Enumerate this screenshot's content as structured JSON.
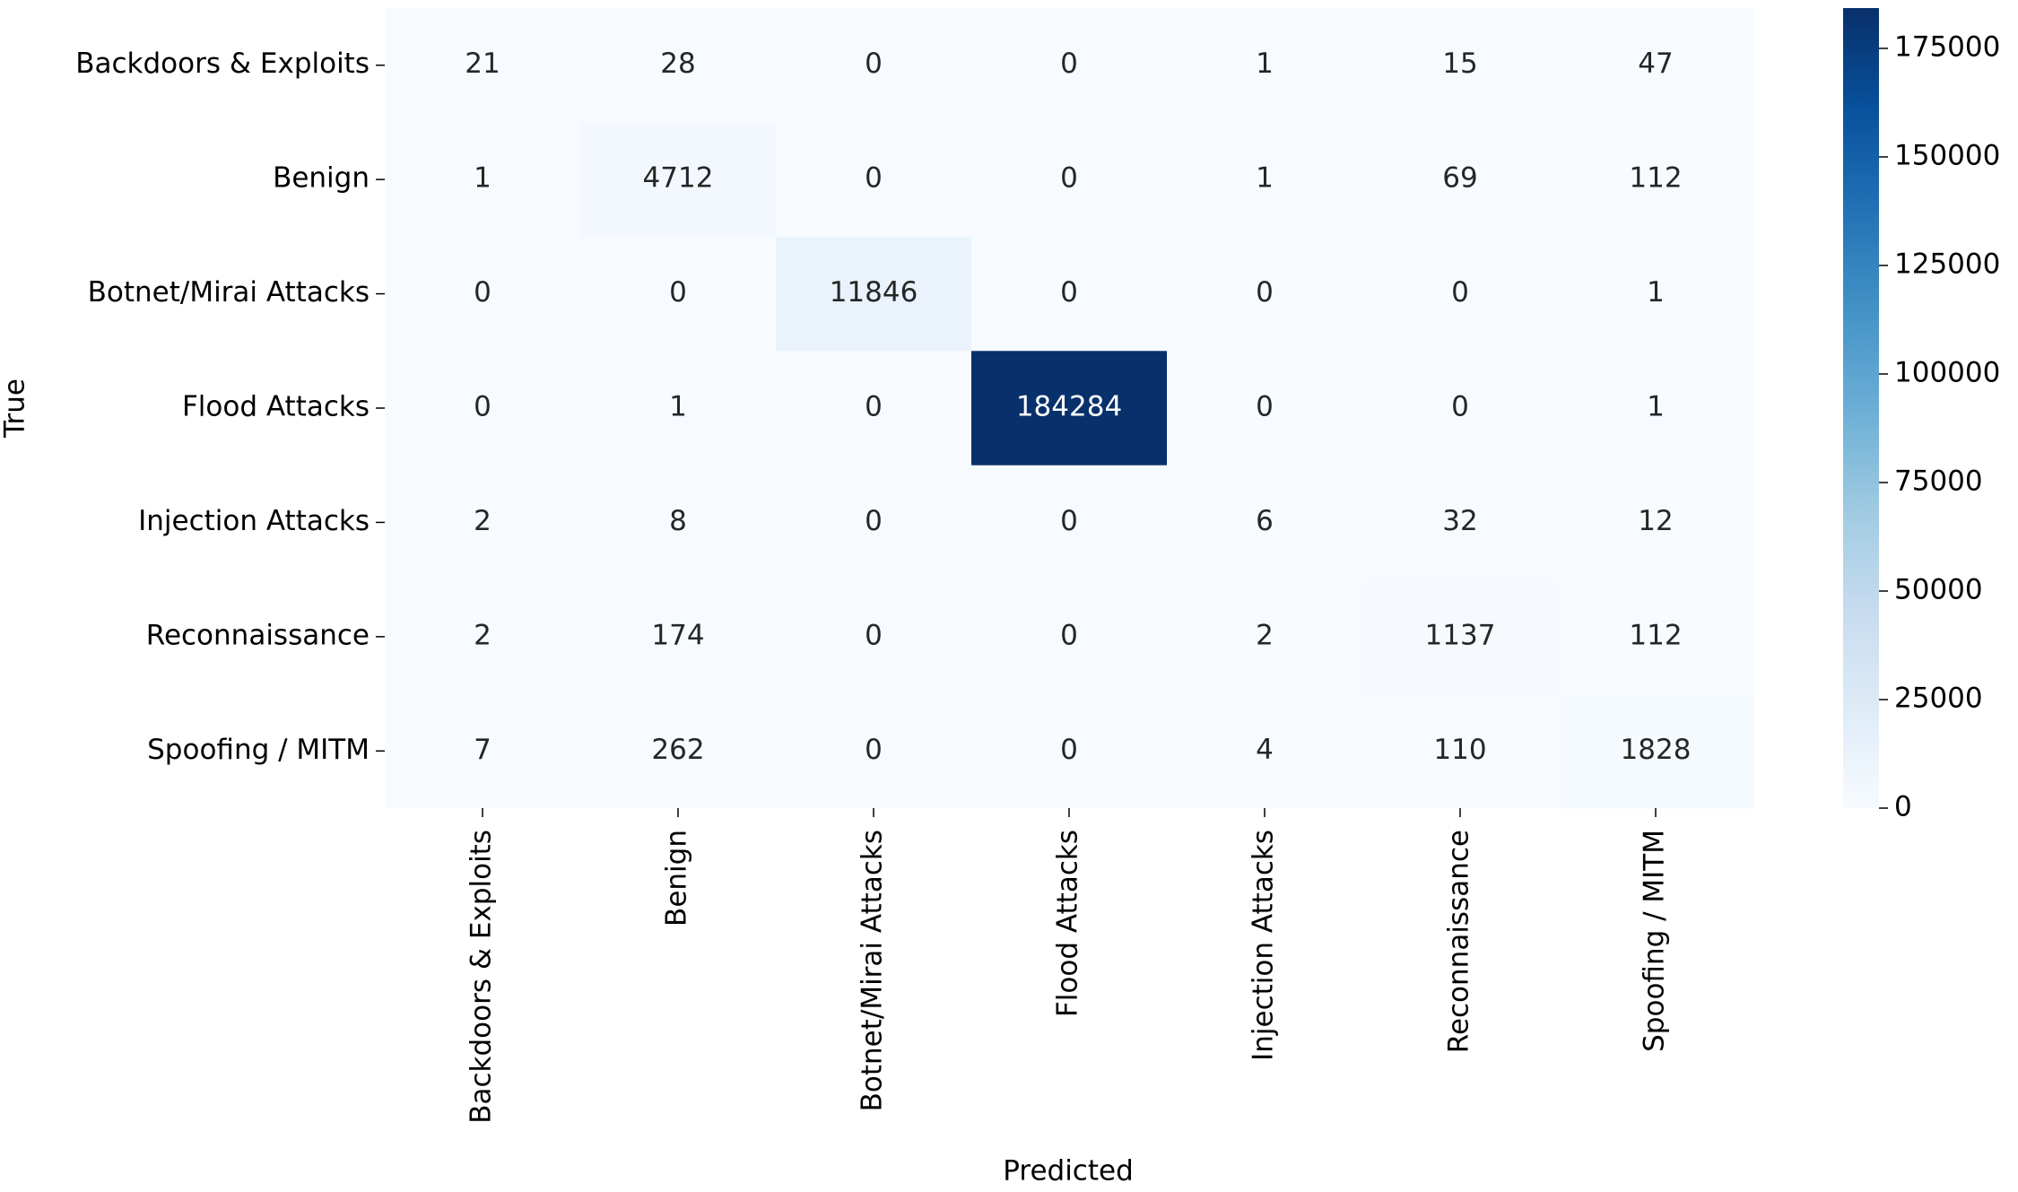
{
  "chart_data": {
    "type": "heatmap",
    "x_categories": [
      "Backdoors & Exploits",
      "Benign",
      "Botnet/Mirai Attacks",
      "Flood Attacks",
      "Injection Attacks",
      "Reconnaissance",
      "Spoofing / MITM"
    ],
    "y_categories": [
      "Backdoors & Exploits",
      "Benign",
      "Botnet/Mirai Attacks",
      "Flood Attacks",
      "Injection Attacks",
      "Reconnaissance",
      "Spoofing / MITM"
    ],
    "values": [
      [
        21,
        28,
        0,
        0,
        1,
        15,
        47
      ],
      [
        1,
        4712,
        0,
        0,
        1,
        69,
        112
      ],
      [
        0,
        0,
        11846,
        0,
        0,
        0,
        1
      ],
      [
        0,
        1,
        0,
        184284,
        0,
        0,
        1
      ],
      [
        2,
        8,
        0,
        0,
        6,
        32,
        12
      ],
      [
        2,
        174,
        0,
        0,
        2,
        1137,
        112
      ],
      [
        7,
        262,
        0,
        0,
        4,
        110,
        1828
      ]
    ],
    "xlabel": "Predicted",
    "ylabel": "True",
    "colormap": "Blues",
    "zlim": [
      0,
      184284
    ],
    "zticks": [
      0,
      25000,
      50000,
      75000,
      100000,
      125000,
      150000,
      175000
    ]
  }
}
